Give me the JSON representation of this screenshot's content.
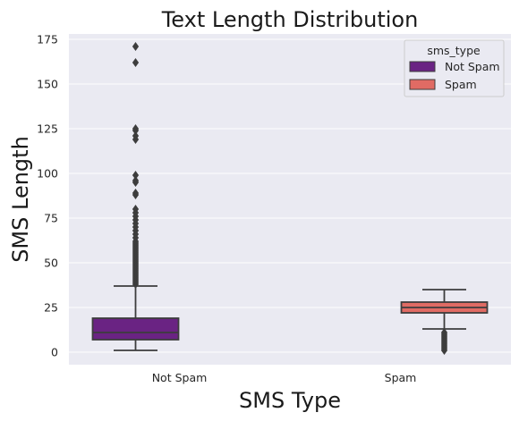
{
  "chart_data": {
    "type": "box",
    "title": "Text Length Distribution",
    "xlabel": "SMS Type",
    "ylabel": "SMS Length",
    "categories": [
      "Not Spam",
      "Spam"
    ],
    "ylim": [
      -7,
      178
    ],
    "yticks": [
      0,
      25,
      50,
      75,
      100,
      125,
      150,
      175
    ],
    "grid": true,
    "legend": {
      "title": "sms_type",
      "position": "top-right",
      "entries": [
        "Not Spam",
        "Spam"
      ]
    },
    "series": [
      {
        "name": "Not Spam",
        "color": "#6a2383",
        "category": "Not Spam",
        "whisker_low": 1,
        "q1": 7,
        "median": 11,
        "q3": 19,
        "whisker_high": 37,
        "outliers": [
          38,
          39,
          40,
          41,
          42,
          43,
          44,
          45,
          46,
          47,
          48,
          49,
          50,
          51,
          52,
          53,
          54,
          55,
          56,
          57,
          58,
          59,
          60,
          61,
          62,
          64,
          66,
          68,
          70,
          72,
          74,
          76,
          78,
          80,
          88,
          89,
          95,
          96,
          99,
          119,
          121,
          124,
          125,
          162,
          171
        ]
      },
      {
        "name": "Spam",
        "color": "#e06b64",
        "category": "Spam",
        "whisker_low": 13,
        "q1": 22,
        "median": 25,
        "q3": 28,
        "whisker_high": 35,
        "outliers": [
          1,
          2,
          3,
          4,
          5,
          6,
          7,
          8,
          9,
          10,
          11
        ]
      }
    ]
  }
}
